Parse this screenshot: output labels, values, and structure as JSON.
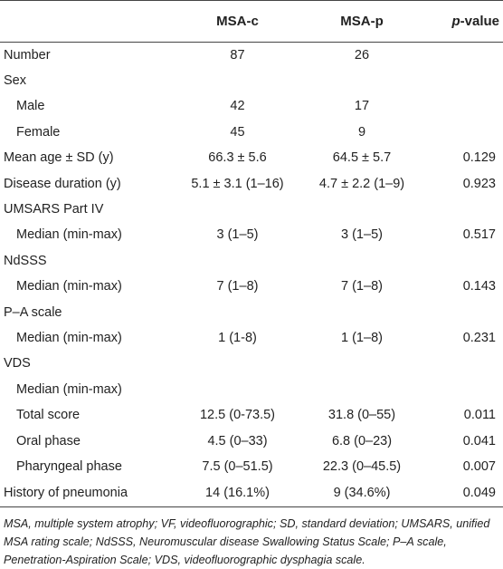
{
  "header": {
    "label": "",
    "msa_c": "MSA-c",
    "msa_p": "MSA-p",
    "p_prefix": "p",
    "p_suffix": "-value"
  },
  "rows": [
    {
      "label": "Number",
      "indent": false,
      "msa_c": "87",
      "msa_p": "26",
      "p": ""
    },
    {
      "label": "Sex",
      "indent": false,
      "msa_c": "",
      "msa_p": "",
      "p": ""
    },
    {
      "label": "Male",
      "indent": true,
      "msa_c": "42",
      "msa_p": "17",
      "p": ""
    },
    {
      "label": "Female",
      "indent": true,
      "msa_c": "45",
      "msa_p": "9",
      "p": ""
    },
    {
      "label": "Mean age ± SD (y)",
      "indent": false,
      "msa_c": "66.3 ± 5.6",
      "msa_p": "64.5 ± 5.7",
      "p": "0.129"
    },
    {
      "label": "Disease duration (y)",
      "indent": false,
      "msa_c": "5.1 ± 3.1 (1–16)",
      "msa_p": "4.7 ± 2.2 (1–9)",
      "p": "0.923"
    },
    {
      "label": "UMSARS Part IV",
      "indent": false,
      "msa_c": "",
      "msa_p": "",
      "p": ""
    },
    {
      "label": "Median (min-max)",
      "indent": true,
      "msa_c": "3 (1–5)",
      "msa_p": "3 (1–5)",
      "p": "0.517"
    },
    {
      "label": "NdSSS",
      "indent": false,
      "msa_c": "",
      "msa_p": "",
      "p": ""
    },
    {
      "label": "Median (min-max)",
      "indent": true,
      "msa_c": "7 (1–8)",
      "msa_p": "7 (1–8)",
      "p": "0.143"
    },
    {
      "label": "P–A scale",
      "indent": false,
      "msa_c": "",
      "msa_p": "",
      "p": ""
    },
    {
      "label": "Median (min-max)",
      "indent": true,
      "msa_c": "1 (1-8)",
      "msa_p": "1 (1–8)",
      "p": "0.231"
    },
    {
      "label": "VDS",
      "indent": false,
      "msa_c": "",
      "msa_p": "",
      "p": ""
    },
    {
      "label": "Median (min-max)",
      "indent": true,
      "msa_c": "",
      "msa_p": "",
      "p": ""
    },
    {
      "label": "Total score",
      "indent": true,
      "msa_c": "12.5 (0-73.5)",
      "msa_p": "31.8 (0–55)",
      "p": "0.011"
    },
    {
      "label": "Oral phase",
      "indent": true,
      "msa_c": "4.5 (0–33)",
      "msa_p": "6.8 (0–23)",
      "p": "0.041"
    },
    {
      "label": "Pharyngeal phase",
      "indent": true,
      "msa_c": "7.5 (0–51.5)",
      "msa_p": "22.3 (0–45.5)",
      "p": "0.007"
    },
    {
      "label": "History of pneumonia",
      "indent": false,
      "msa_c": "14 (16.1%)",
      "msa_p": "9 (34.6%)",
      "p": "0.049"
    }
  ],
  "footnote": "MSA, multiple system atrophy; VF, videofluorographic; SD, standard deviation; UMSARS, unified MSA rating scale; NdSSS, Neuromuscular disease Swallowing Status Scale; P–A scale, Penetration-Aspiration Scale; VDS, videofluorographic dysphagia scale."
}
